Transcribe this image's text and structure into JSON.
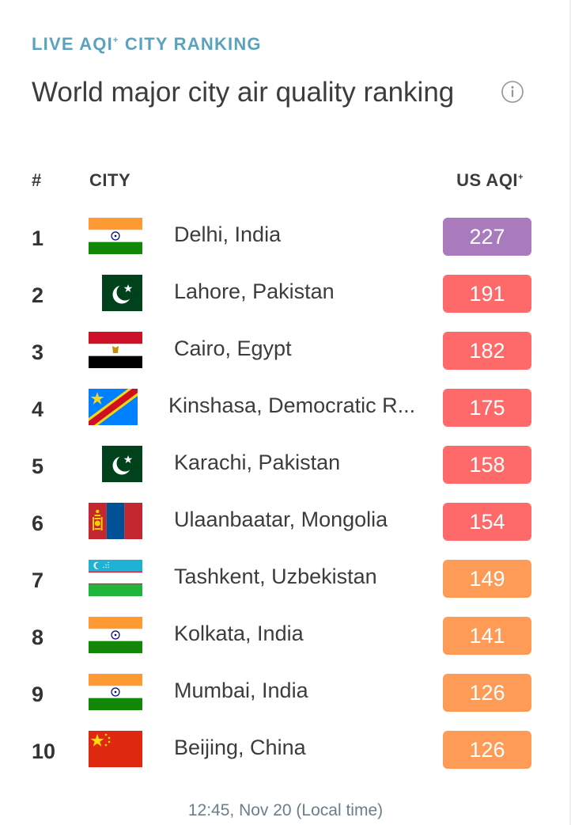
{
  "header": {
    "eyebrow_text": "LIVE AQI",
    "eyebrow_plus": "+",
    "eyebrow_suffix": "CITY RANKING",
    "title": "World major city air quality ranking",
    "info_icon": "info-circle-icon"
  },
  "table": {
    "col_rank": "#",
    "col_city": "CITY",
    "col_aqi": "US AQI",
    "col_aqi_plus": "+"
  },
  "rows": [
    {
      "rank": "1",
      "city": "Delhi, India",
      "aqi": "227",
      "flag": "india-flag-icon",
      "color": "#a97abc"
    },
    {
      "rank": "2",
      "city": "Lahore, Pakistan",
      "aqi": "191",
      "flag": "pakistan-flag-icon",
      "color": "#fe6a69"
    },
    {
      "rank": "3",
      "city": "Cairo, Egypt",
      "aqi": "182",
      "flag": "egypt-flag-icon",
      "color": "#fe6a69"
    },
    {
      "rank": "4",
      "city": "Kinshasa, Democratic R...",
      "aqi": "175",
      "flag": "dr-congo-flag-icon",
      "color": "#fe6a69"
    },
    {
      "rank": "5",
      "city": "Karachi, Pakistan",
      "aqi": "158",
      "flag": "pakistan-flag-icon",
      "color": "#fe6a69"
    },
    {
      "rank": "6",
      "city": "Ulaanbaatar, Mongolia",
      "aqi": "154",
      "flag": "mongolia-flag-icon",
      "color": "#fe6a69"
    },
    {
      "rank": "7",
      "city": "Tashkent, Uzbekistan",
      "aqi": "149",
      "flag": "uzbekistan-flag-icon",
      "color": "#fe9b57"
    },
    {
      "rank": "8",
      "city": "Kolkata, India",
      "aqi": "141",
      "flag": "india-flag-icon",
      "color": "#fe9b57"
    },
    {
      "rank": "9",
      "city": "Mumbai, India",
      "aqi": "126",
      "flag": "india-flag-icon",
      "color": "#fe9b57"
    },
    {
      "rank": "10",
      "city": "Beijing, China",
      "aqi": "126",
      "flag": "china-flag-icon",
      "color": "#fe9b57"
    }
  ],
  "footer": {
    "timestamp": "12:45, Nov 20 (Local time)"
  }
}
